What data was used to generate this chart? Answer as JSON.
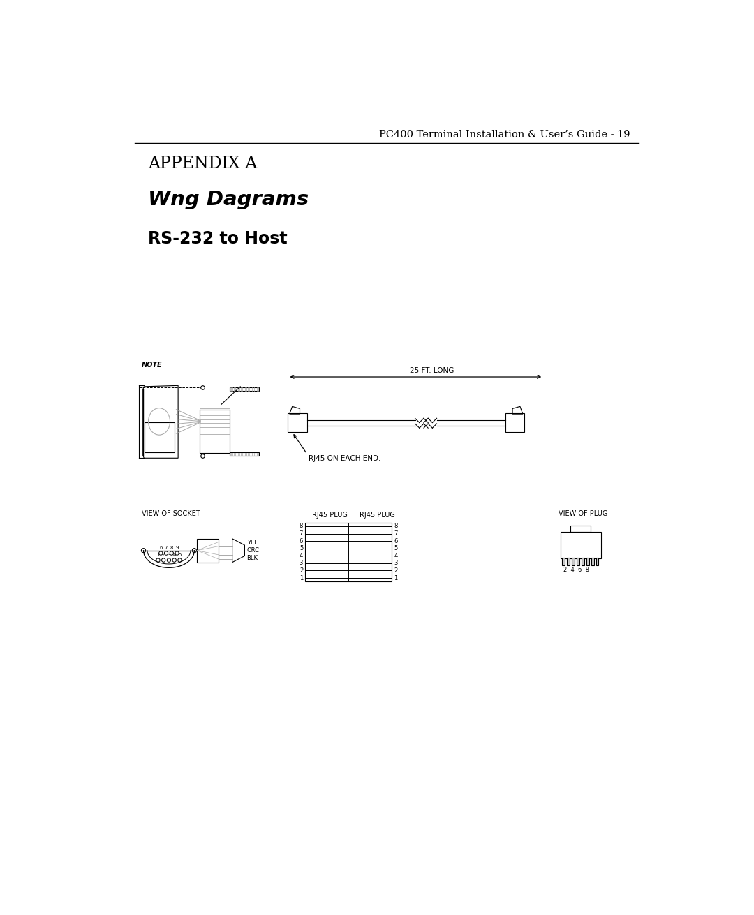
{
  "header_text": "PC400 Terminal Installation & User’s Guide - 19",
  "appendix_label": "APPENDIX A",
  "wiring_title": "Wng Dagrams",
  "section_title": "RS-232 to Host",
  "note_label": "NOTE",
  "dimension_label": "25 FT. LONG",
  "rj45_label": "RJ45 ON EACH END.",
  "view_socket_label": "VIEW OF SOCKET",
  "rj45_plug_label1": "RJ45 PLUG",
  "rj45_plug_label2": "RJ45 PLUG",
  "view_plug_label": "VIEW OF PLUG",
  "blk_label": "BLK",
  "orc_label": "ORC",
  "yel_label": "YEL",
  "pin_numbers_bottom": "2  4  6  8",
  "background_color": "#ffffff",
  "line_color": "#000000",
  "gray_color": "#aaaaaa"
}
